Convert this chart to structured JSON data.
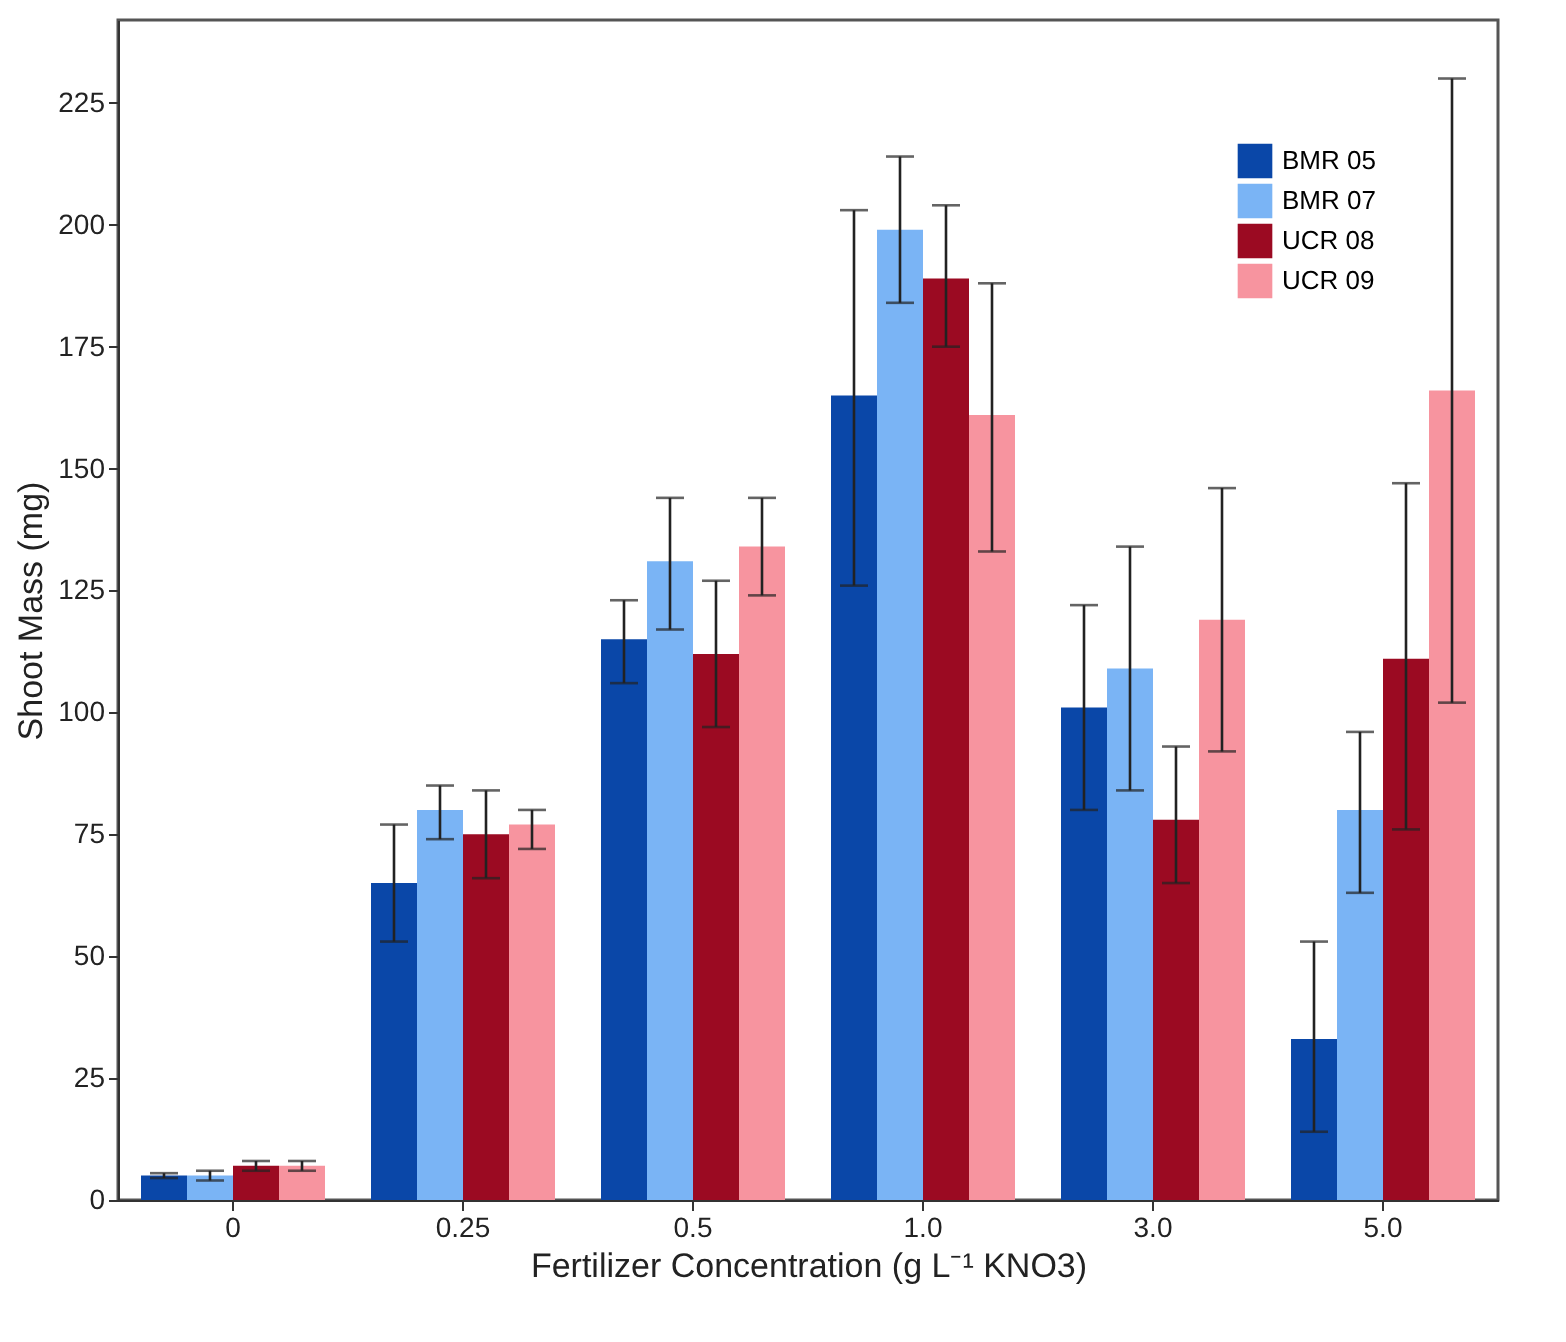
{
  "chart_data": {
    "type": "bar",
    "xlabel": "Fertilizer Concentration (g L⁻¹ KNO3)",
    "ylabel": "Shoot Mass (mg)",
    "categories": [
      "0",
      "0.25",
      "0.5",
      "1.0",
      "3.0",
      "5.0"
    ],
    "ylim": [
      0,
      242
    ],
    "yticks": [
      0,
      25,
      50,
      75,
      100,
      125,
      150,
      175,
      200,
      225
    ],
    "grid": false,
    "legend": "top right",
    "series": [
      {
        "name": "BMR 05",
        "color": "#0a47a8",
        "values": [
          5,
          65,
          115,
          165,
          101,
          33
        ],
        "errors": [
          [
            4.5,
            5.5
          ],
          [
            53,
            77
          ],
          [
            106,
            123
          ],
          [
            126,
            203
          ],
          [
            80,
            122
          ],
          [
            14,
            53
          ]
        ]
      },
      {
        "name": "BMR 07",
        "color": "#7ab4f5",
        "values": [
          5,
          80,
          131,
          199,
          109,
          80
        ],
        "errors": [
          [
            4,
            6
          ],
          [
            74,
            85
          ],
          [
            117,
            144
          ],
          [
            184,
            214
          ],
          [
            84,
            134
          ],
          [
            63,
            96
          ]
        ]
      },
      {
        "name": "UCR 08",
        "color": "#9b0a22",
        "values": [
          7,
          75,
          112,
          189,
          78,
          111
        ],
        "errors": [
          [
            6,
            8
          ],
          [
            66,
            84
          ],
          [
            97,
            127
          ],
          [
            175,
            204
          ],
          [
            65,
            93
          ],
          [
            76,
            147
          ]
        ]
      },
      {
        "name": "UCR 09",
        "color": "#f7949f",
        "values": [
          7,
          77,
          134,
          161,
          119,
          166
        ],
        "errors": [
          [
            6,
            8
          ],
          [
            72,
            80
          ],
          [
            124,
            144
          ],
          [
            133,
            188
          ],
          [
            92,
            146
          ],
          [
            102,
            230
          ]
        ]
      }
    ]
  }
}
